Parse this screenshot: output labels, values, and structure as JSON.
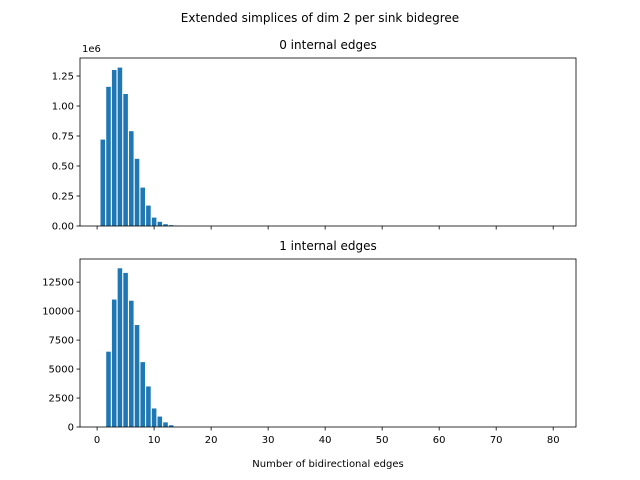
{
  "chart_data": {
    "suptitle": "Extended simplices of dim 2 per sink bidegree",
    "type": "bar",
    "panels": [
      {
        "title": "0 internal edges",
        "xlabel": "",
        "ylabel": "",
        "y_offset_label": "1e6",
        "xlim": [
          -3,
          84
        ],
        "ylim": [
          0,
          1400000
        ],
        "xticks": [
          0,
          10,
          20,
          30,
          40,
          50,
          60,
          70,
          80
        ],
        "show_xtick_labels": false,
        "yticks": [
          0,
          250000,
          500000,
          750000,
          1000000,
          1250000
        ],
        "ytick_labels": [
          "0.00",
          "0.25",
          "0.50",
          "0.75",
          "1.00",
          "1.25"
        ],
        "grid": false,
        "bars": {
          "x": [
            1,
            2,
            3,
            4,
            5,
            6,
            7,
            8,
            9,
            10,
            11,
            12,
            13,
            14,
            15
          ],
          "values": [
            720000,
            1160000,
            1300000,
            1320000,
            1100000,
            790000,
            560000,
            320000,
            170000,
            70000,
            35000,
            15000,
            7000,
            3000,
            1000
          ]
        }
      },
      {
        "title": "1 internal edges",
        "xlabel": "Number of bidirectional edges",
        "ylabel": "",
        "y_offset_label": "",
        "xlim": [
          -3,
          84
        ],
        "ylim": [
          0,
          14500
        ],
        "xticks": [
          0,
          10,
          20,
          30,
          40,
          50,
          60,
          70,
          80
        ],
        "show_xtick_labels": true,
        "yticks": [
          0,
          2500,
          5000,
          7500,
          10000,
          12500
        ],
        "ytick_labels": [
          "0",
          "2500",
          "5000",
          "7500",
          "10000",
          "12500"
        ],
        "grid": false,
        "bars": {
          "x": [
            2,
            3,
            4,
            5,
            6,
            7,
            8,
            9,
            10,
            11,
            12,
            13
          ],
          "values": [
            6500,
            11000,
            13700,
            13300,
            10900,
            8800,
            5600,
            3500,
            1600,
            900,
            400,
            150
          ]
        }
      }
    ],
    "colors": {
      "bar": "#1f77b4"
    }
  }
}
